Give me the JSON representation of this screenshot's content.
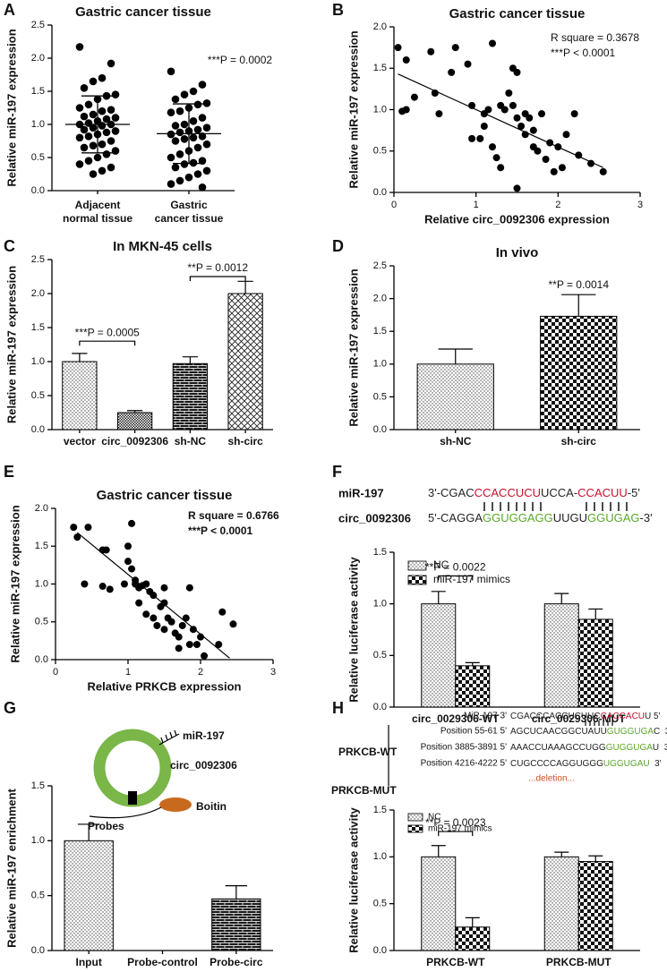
{
  "chart_data": [
    {
      "panel": "A",
      "type": "dotplot",
      "title": "Gastric cancer tissue",
      "y_label": "Relative miR-197 expression",
      "categories": [
        [
          "Adjacent",
          "normal tissue"
        ],
        [
          "Gastric",
          "cancer tissue"
        ]
      ],
      "values": [
        [
          2.17,
          1.92,
          1.7,
          1.65,
          1.55,
          1.45,
          1.43,
          1.38,
          1.3,
          1.25,
          1.22,
          1.2,
          1.15,
          1.12,
          1.1,
          1.08,
          1.05,
          1.02,
          1.0,
          1.0,
          0.98,
          0.95,
          0.92,
          0.9,
          0.88,
          0.85,
          0.82,
          0.8,
          0.75,
          0.7,
          0.68,
          0.65,
          0.6,
          0.55,
          0.5,
          0.45,
          0.4,
          0.35,
          0.3,
          0.25
        ],
        [
          1.8,
          1.6,
          1.5,
          1.45,
          1.38,
          1.32,
          1.3,
          1.25,
          1.2,
          1.18,
          1.1,
          1.05,
          1.0,
          0.98,
          0.95,
          0.92,
          0.9,
          0.88,
          0.85,
          0.82,
          0.8,
          0.78,
          0.75,
          0.7,
          0.65,
          0.6,
          0.55,
          0.5,
          0.45,
          0.42,
          0.4,
          0.35,
          0.3,
          0.25,
          0.2,
          0.15,
          0.1,
          0.05
        ]
      ],
      "color": "#000000",
      "means": [
        1.0,
        0.86
      ],
      "sd": [
        0.43,
        0.45
      ],
      "ylim": [
        0,
        2.5
      ],
      "yticks": [
        {
          "value": 0,
          "label": "0.0"
        },
        0.5,
        {
          "value": 1,
          "label": "1.0"
        },
        1.5,
        {
          "value": 2,
          "label": "2.0"
        },
        2.5
      ],
      "annotations": [
        "***P = 0.0002"
      ]
    },
    {
      "panel": "B",
      "type": "scatter",
      "title": "Gastric cancer tissue",
      "x_label": "Relative circ_0092306 expression",
      "y_label": "Relative miR-197 expression",
      "x": [
        0.05,
        0.15,
        0.1,
        0.15,
        0.25,
        0.45,
        0.5,
        0.7,
        0.75,
        0.55,
        0.9,
        0.95,
        0.95,
        1.05,
        1.1,
        1.15,
        1.2,
        1.3,
        1.2,
        1.25,
        1.35,
        1.4,
        1.45,
        1.5,
        1.45,
        1.5,
        1.55,
        1.6,
        1.65,
        1.7,
        1.6,
        1.7,
        1.75,
        1.8,
        1.85,
        1.9,
        1.95,
        2.0,
        2.05,
        2.1,
        2.2,
        2.25,
        2.4,
        2.55,
        1.5,
        1.3,
        1.1
      ],
      "y": [
        1.75,
        1.6,
        0.98,
        1.0,
        1.15,
        1.7,
        1.2,
        1.45,
        1.75,
        0.95,
        1.55,
        1.05,
        0.65,
        0.65,
        0.8,
        1.0,
        1.8,
        1.05,
        0.55,
        0.42,
        1.0,
        1.2,
        1.5,
        1.45,
        1.05,
        0.9,
        0.8,
        0.95,
        0.9,
        0.75,
        0.7,
        0.55,
        0.5,
        0.95,
        0.4,
        0.6,
        0.25,
        0.55,
        0.3,
        0.7,
        0.95,
        0.45,
        0.35,
        0.25,
        0.05,
        0.3,
        0.95
      ],
      "color": "#000000",
      "trendline": {
        "x": [
          0.05,
          2.55
        ],
        "y": [
          1.43,
          0.3
        ]
      },
      "xlim": [
        0,
        3
      ],
      "xticks": [
        0,
        1,
        2,
        3
      ],
      "ylim": [
        0,
        2
      ],
      "yticks": [
        {
          "value": 0,
          "label": "0.0"
        },
        0.5,
        {
          "value": 1,
          "label": "1.0"
        },
        1.5,
        {
          "value": 2,
          "label": "2.0"
        }
      ],
      "annotations": [
        "R square = 0.3678",
        "***P < 0.0001"
      ],
      "annotation_bold": false
    },
    {
      "panel": "C",
      "type": "bar",
      "title": "In MKN-45 cells",
      "y_label": "Relative miR-197 expression",
      "categories": [
        "vector",
        "circ_0092306",
        "sh-NC",
        "sh-circ"
      ],
      "values": [
        1.0,
        0.25,
        0.97,
        2.0
      ],
      "errors": [
        0.12,
        0.03,
        0.1,
        0.18
      ],
      "patterns": [
        "dots",
        "fine",
        "brick",
        "cross"
      ],
      "ylim": [
        0,
        2.5
      ],
      "yticks": [
        {
          "value": 0,
          "label": "0.0"
        },
        0.5,
        {
          "value": 1,
          "label": "1.0"
        },
        1.5,
        {
          "value": 2,
          "label": "2.0"
        },
        2.5
      ],
      "annotations": [
        "***P = 0.0005",
        "**P = 0.0012"
      ]
    },
    {
      "panel": "D",
      "type": "bar",
      "title": "In vivo",
      "y_label": "Relative miR-197 expression",
      "categories": [
        "sh-NC",
        "sh-circ"
      ],
      "values": [
        1.0,
        1.73
      ],
      "errors": [
        0.23,
        0.33
      ],
      "patterns": [
        "dots",
        "checker"
      ],
      "ylim": [
        0,
        2.5
      ],
      "yticks": [
        {
          "value": 0,
          "label": "0.0"
        },
        0.5,
        {
          "value": 1,
          "label": "1.0"
        },
        1.5,
        {
          "value": 2,
          "label": "2.0"
        },
        2.5
      ],
      "annotations": [
        "**P = 0.0014"
      ]
    },
    {
      "panel": "E",
      "type": "scatter",
      "title": "Gastric cancer tissue",
      "x_label": "Relative PRKCB expression",
      "y_label": "Relative miR-197 expression",
      "x": [
        0.25,
        0.3,
        0.45,
        0.4,
        0.65,
        0.7,
        0.65,
        0.75,
        0.95,
        1.0,
        1.05,
        1.0,
        1.05,
        1.1,
        1.1,
        1.15,
        1.2,
        1.25,
        1.3,
        1.35,
        1.15,
        1.25,
        1.35,
        1.4,
        1.45,
        1.5,
        1.5,
        1.55,
        1.6,
        1.65,
        1.7,
        1.75,
        1.7,
        1.8,
        1.85,
        1.85,
        1.9,
        1.95,
        2.0,
        2.05,
        2.25,
        2.3,
        2.45,
        1.5
      ],
      "y": [
        1.75,
        1.62,
        1.75,
        1.0,
        1.45,
        1.45,
        0.97,
        0.93,
        1.0,
        1.5,
        1.8,
        1.3,
        1.2,
        1.05,
        1.0,
        0.95,
        0.98,
        1.0,
        0.9,
        0.85,
        0.75,
        0.6,
        0.55,
        0.45,
        0.7,
        0.75,
        0.4,
        0.55,
        0.5,
        0.35,
        0.3,
        0.45,
        0.15,
        0.55,
        0.2,
        0.95,
        0.4,
        0.2,
        0.3,
        0.05,
        0.2,
        0.63,
        0.47,
        0.95
      ],
      "color": "#000000",
      "trendline": {
        "x": [
          0.3,
          2.4
        ],
        "y": [
          1.68,
          0.02
        ]
      },
      "xlim": [
        0,
        3
      ],
      "xticks": [
        0,
        1,
        2,
        3
      ],
      "ylim": [
        0,
        2
      ],
      "yticks": [
        {
          "value": 0,
          "label": "0.0"
        },
        0.5,
        {
          "value": 1,
          "label": "1.0"
        },
        1.5,
        {
          "value": 2,
          "label": "2.0"
        }
      ],
      "annotations": [
        "R square = 0.6766",
        "***P < 0.0001"
      ],
      "annotation_bold": true
    },
    {
      "panel": "F",
      "type": "grouped_bar",
      "y_label": "Relative luciferase activity",
      "sequences": [
        {
          "label": "miR-197",
          "parts": [
            {
              "text": "3'-CGAC",
              "color": "#222222"
            },
            {
              "text": "CCACCUCU",
              "color": "#c8102e"
            },
            {
              "text": "UCCA-",
              "color": "#222222"
            },
            {
              "text": "CCACUU",
              "color": "#c8102e"
            },
            {
              "text": "-5'",
              "color": "#222222"
            }
          ]
        },
        {
          "label": "circ_0092306",
          "parts": [
            {
              "text": "5'-CAGGA",
              "color": "#222222"
            },
            {
              "text": "GGUGGAGG",
              "color": "#5ba829"
            },
            {
              "text": "UUGU",
              "color": "#222222"
            },
            {
              "text": "GGUGAG",
              "color": "#5ba829"
            },
            {
              "text": "-3'",
              "color": "#222222"
            }
          ]
        }
      ],
      "categories": [
        "circ_0029306-WT",
        "circ_0029306-MUT"
      ],
      "series": [
        {
          "name": "NC",
          "pattern": "dots",
          "values": [
            1.0,
            1.0
          ],
          "errors": [
            0.12,
            0.1
          ]
        },
        {
          "name": "miR-197 mimics",
          "pattern": "checker",
          "values": [
            0.4,
            0.85
          ],
          "errors": [
            0.03,
            0.1
          ]
        }
      ],
      "ylim": [
        0,
        1.5
      ],
      "yticks": [
        {
          "value": 0,
          "label": "0.0"
        },
        0.5,
        {
          "value": 1,
          "label": "1.0"
        },
        1.5
      ],
      "annotations": [
        "**P = 0.0022"
      ]
    },
    {
      "panel": "G",
      "type": "bar",
      "y_label": "Relative miR-197 enrichment",
      "diagram_labels": [
        "miR-197",
        "circ_0092306",
        "Probes",
        "Boitin"
      ],
      "categories": [
        "Input",
        "Probe-control",
        "Probe-circ"
      ],
      "values": [
        1.0,
        0,
        0.47
      ],
      "errors": [
        0.15,
        null,
        0.12
      ],
      "patterns": [
        "dots",
        "dots",
        "brick"
      ],
      "ylim": [
        0,
        1.5
      ],
      "yticks": [
        {
          "value": 0,
          "label": "0.0"
        },
        0.5,
        {
          "value": 1,
          "label": "1.0"
        },
        1.5
      ]
    },
    {
      "panel": "H",
      "type": "grouped_bar",
      "y_label": "Relative luciferase activity",
      "sequences": [
        {
          "label": "MiR-197  3'",
          "parts": [
            {
              "text": "CGACCCACCUCUUC",
              "color": "#222222"
            },
            {
              "text": "CACCACU",
              "color": "#c8102e"
            },
            {
              "text": "U 5'",
              "color": "#222222"
            }
          ]
        },
        {
          "label": "Position 55-61  5'",
          "parts": [
            {
              "text": "AGCUCAACGGCUAUU",
              "color": "#222222"
            },
            {
              "text": "GUGGUGA",
              "color": "#5ba829"
            },
            {
              "text": "C  3'",
              "color": "#222222"
            }
          ]
        },
        {
          "label": "Position 3885-3891  5'",
          "parts": [
            {
              "text": "AAACCUAAAGCCUGG",
              "color": "#222222"
            },
            {
              "text": "GUGGUGA",
              "color": "#5ba829"
            },
            {
              "text": "U  3'",
              "color": "#222222"
            }
          ]
        },
        {
          "label": "Position 4216-4222  5'",
          "parts": [
            {
              "text": "CUGCCCCAGGUGGG",
              "color": "#222222"
            },
            {
              "text": "UGGUGAU",
              "color": "#5ba829"
            },
            {
              "text": "  3'",
              "color": "#222222"
            }
          ]
        }
      ],
      "group_labels": [
        "PRKCB-WT",
        "PRKCB-MUT"
      ],
      "deletion_note": "...deletion...",
      "categories": [
        "PRKCB-WT",
        "PRKCB-MUT"
      ],
      "series": [
        {
          "name": "NC",
          "pattern": "dots",
          "values": [
            1.0,
            1.0
          ],
          "errors": [
            0.12,
            0.05
          ]
        },
        {
          "name": "miR-197 mimics",
          "pattern": "checker",
          "values": [
            0.25,
            0.95
          ],
          "errors": [
            0.1,
            0.06
          ]
        }
      ],
      "ylim": [
        0,
        1.5
      ],
      "yticks": [
        {
          "value": 0,
          "label": "0.0"
        },
        0.5,
        {
          "value": 1,
          "label": "1.0"
        },
        1.5
      ],
      "annotations": [
        "**P = 0.0023"
      ]
    }
  ]
}
